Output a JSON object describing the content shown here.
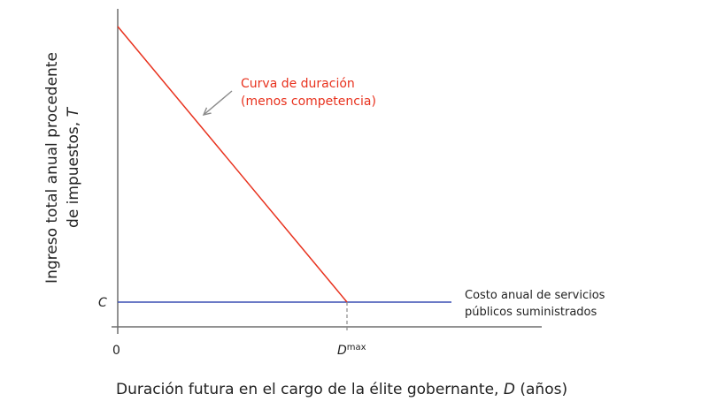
{
  "diagram": {
    "y_axis_label_line1": "Ingreso total anual procedente",
    "y_axis_label_line2": "de impuestos, ",
    "y_axis_label_var": "T",
    "x_axis_label": "Duración futura en el cargo de la élite gobernante, ",
    "x_axis_label_var": "D",
    "x_axis_label_unit": " (años)",
    "origin_label": "0",
    "c_label": "C",
    "dmax_label": "D",
    "dmax_superscript": "max",
    "duration_curve_label_line1": "Curva de duración",
    "duration_curve_label_line2": "(menos competencia)",
    "cost_line_label_line1": "Costo anual de servicios",
    "cost_line_label_line2": "públicos suministrados",
    "colors": {
      "duration_curve": "#e8321e",
      "cost_line": "#3a4fb4",
      "axes": "#6e6e6e",
      "text": "#222222"
    }
  }
}
